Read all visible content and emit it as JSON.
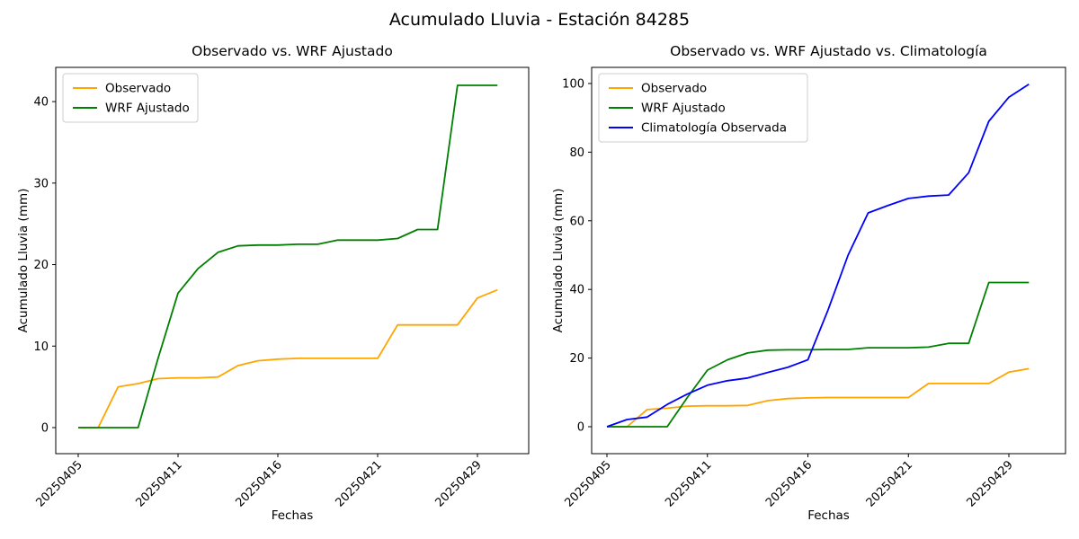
{
  "figure": {
    "suptitle": "Acumulado Lluvia - Estación 84285",
    "background": "#ffffff"
  },
  "chart_data": [
    {
      "type": "line",
      "title": "Observado vs. WRF Ajustado",
      "xlabel": "Fechas",
      "ylabel": "Acumulado Lluvia (mm)",
      "x_tick_labels": [
        "20250405",
        "20250411",
        "20250416",
        "20250421",
        "20250429"
      ],
      "x_tick_positions": [
        0,
        5,
        10,
        15,
        20
      ],
      "y_ticks": [
        0,
        10,
        20,
        30,
        40
      ],
      "ylim": [
        -3.2,
        44.2
      ],
      "grid": false,
      "legend_position": "upper-left",
      "series": [
        {
          "name": "Observado",
          "color": "#FFA500",
          "values": [
            0,
            0,
            5.0,
            5.4,
            6.0,
            6.1,
            6.1,
            6.2,
            7.6,
            8.2,
            8.4,
            8.5,
            8.5,
            8.5,
            8.5,
            8.5,
            12.6,
            12.6,
            12.6,
            12.6,
            15.9,
            16.9
          ]
        },
        {
          "name": "WRF Ajustado",
          "color": "#008000",
          "values": [
            0,
            0,
            0,
            0,
            8.5,
            16.5,
            19.5,
            21.5,
            22.3,
            22.4,
            22.4,
            22.5,
            22.5,
            23.0,
            23.0,
            23.0,
            23.2,
            24.3,
            24.3,
            42.0,
            42.0,
            42.0
          ]
        }
      ]
    },
    {
      "type": "line",
      "title": "Observado vs. WRF Ajustado vs. Climatología",
      "xlabel": "Fechas",
      "ylabel": "Acumulado Lluvia (mm)",
      "x_tick_labels": [
        "20250405",
        "20250411",
        "20250416",
        "20250421",
        "20250429"
      ],
      "x_tick_positions": [
        0,
        5,
        10,
        15,
        20
      ],
      "y_ticks": [
        0,
        20,
        40,
        60,
        80,
        100
      ],
      "ylim": [
        -7.85,
        104.7
      ],
      "grid": false,
      "legend_position": "upper-left",
      "series": [
        {
          "name": "Observado",
          "color": "#FFA500",
          "values": [
            0,
            0,
            5.0,
            5.4,
            6.0,
            6.1,
            6.1,
            6.2,
            7.6,
            8.2,
            8.4,
            8.5,
            8.5,
            8.5,
            8.5,
            8.5,
            12.6,
            12.6,
            12.6,
            12.6,
            15.9,
            16.9
          ]
        },
        {
          "name": "WRF Ajustado",
          "color": "#008000",
          "values": [
            0,
            0,
            0,
            0,
            8.5,
            16.5,
            19.5,
            21.5,
            22.3,
            22.4,
            22.4,
            22.5,
            22.5,
            23.0,
            23.0,
            23.0,
            23.2,
            24.3,
            24.3,
            42.0,
            42.0,
            42.0
          ]
        },
        {
          "name": "Climatología Observada",
          "color": "#0000FF",
          "values": [
            0,
            2.1,
            2.8,
            6.5,
            9.5,
            12.1,
            13.4,
            14.2,
            15.8,
            17.3,
            19.5,
            34,
            50,
            62.3,
            64.5,
            66.5,
            67.2,
            67.5,
            74,
            89,
            96,
            99.8
          ]
        }
      ]
    }
  ]
}
